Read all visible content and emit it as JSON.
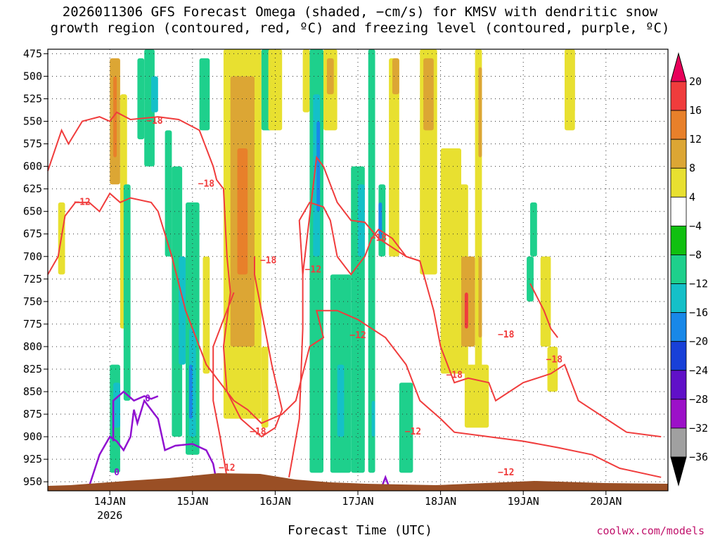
{
  "title": {
    "line1": "2026011306 GFS Forecast Omega (shaded, −cm/s) for KMSV with dendritic snow",
    "line2": "growth region (contoured, red, ºC) and freezing level (contoured, purple, ºC)"
  },
  "xlabel": "Forecast Time (UTC)",
  "credit": "coolwx.com/models",
  "chart_data": {
    "type": "heatmap",
    "y_axis": {
      "label": "",
      "ticks": [
        475,
        500,
        525,
        550,
        575,
        600,
        625,
        650,
        675,
        700,
        725,
        750,
        775,
        800,
        825,
        850,
        875,
        900,
        925,
        950
      ],
      "range": [
        470,
        960
      ]
    },
    "x_axis": {
      "ticks": [
        {
          "label": "14JAN",
          "sub": "2026"
        },
        {
          "label": "15JAN",
          "sub": ""
        },
        {
          "label": "16JAN",
          "sub": ""
        },
        {
          "label": "17JAN",
          "sub": ""
        },
        {
          "label": "18JAN",
          "sub": ""
        },
        {
          "label": "19JAN",
          "sub": ""
        },
        {
          "label": "20JAN",
          "sub": ""
        }
      ],
      "start_hour": -18,
      "end_hour": 162
    },
    "colorbar": {
      "labels": [
        "20",
        "16",
        "12",
        "8",
        "4",
        "−4",
        "−8",
        "−12",
        "−16",
        "−20",
        "−24",
        "−28",
        "−32",
        "−36"
      ],
      "levels": [
        20,
        16,
        12,
        8,
        4,
        -4,
        -8,
        -12,
        -16,
        -20,
        -24,
        -28,
        -32,
        -36
      ],
      "colors": [
        "#e8005a",
        "#f03c3c",
        "#e8802a",
        "#dca634",
        "#e8e030",
        "#ffffff",
        "#10c010",
        "#1ed08c",
        "#14c0c8",
        "#1888e8",
        "#1840d8",
        "#6010c8",
        "#9c10c8",
        "#a0a0a0",
        "#000000"
      ]
    },
    "omega_cells": [
      {
        "h0": 0,
        "h1": 3,
        "p0": 480,
        "p1": 620,
        "v": 8
      },
      {
        "h0": 1,
        "h1": 2,
        "p0": 500,
        "p1": 590,
        "v": 12
      },
      {
        "h0": -15,
        "h1": -13,
        "p0": 640,
        "p1": 720,
        "v": 4
      },
      {
        "h0": 3,
        "h1": 5,
        "p0": 520,
        "p1": 780,
        "v": 4
      },
      {
        "h0": 4,
        "h1": 6,
        "p0": 620,
        "p1": 860,
        "v": -8
      },
      {
        "h0": 0,
        "h1": 3,
        "p0": 820,
        "p1": 940,
        "v": -8
      },
      {
        "h0": 1,
        "h1": 3,
        "p0": 840,
        "p1": 890,
        "v": -12
      },
      {
        "h0": 8,
        "h1": 10,
        "p0": 480,
        "p1": 570,
        "v": -8
      },
      {
        "h0": 10,
        "h1": 13,
        "p0": 470,
        "p1": 600,
        "v": -8
      },
      {
        "h0": 12,
        "h1": 14,
        "p0": 500,
        "p1": 540,
        "v": -12
      },
      {
        "h0": 16,
        "h1": 18,
        "p0": 560,
        "p1": 700,
        "v": -8
      },
      {
        "h0": 18,
        "h1": 21,
        "p0": 600,
        "p1": 900,
        "v": -8
      },
      {
        "h0": 20,
        "h1": 22,
        "p0": 700,
        "p1": 820,
        "v": -12
      },
      {
        "h0": 22,
        "h1": 26,
        "p0": 640,
        "p1": 920,
        "v": -8
      },
      {
        "h0": 23,
        "h1": 25,
        "p0": 780,
        "p1": 900,
        "v": -12
      },
      {
        "h0": 23,
        "h1": 24,
        "p0": 820,
        "p1": 880,
        "v": -16
      },
      {
        "h0": 26,
        "h1": 29,
        "p0": 480,
        "p1": 560,
        "v": -8
      },
      {
        "h0": 27,
        "h1": 29,
        "p0": 700,
        "p1": 830,
        "v": 4
      },
      {
        "h0": 33,
        "h1": 44,
        "p0": 470,
        "p1": 880,
        "v": 4
      },
      {
        "h0": 35,
        "h1": 42,
        "p0": 500,
        "p1": 800,
        "v": 8
      },
      {
        "h0": 37,
        "h1": 40,
        "p0": 580,
        "p1": 720,
        "v": 12
      },
      {
        "h0": 44,
        "h1": 47,
        "p0": 470,
        "p1": 560,
        "v": -8
      },
      {
        "h0": 44,
        "h1": 46,
        "p0": 800,
        "p1": 890,
        "v": 4
      },
      {
        "h0": 46,
        "h1": 50,
        "p0": 470,
        "p1": 560,
        "v": 4
      },
      {
        "h0": 56,
        "h1": 58,
        "p0": 470,
        "p1": 540,
        "v": 4
      },
      {
        "h0": 58,
        "h1": 62,
        "p0": 470,
        "p1": 940,
        "v": -8
      },
      {
        "h0": 59,
        "h1": 61,
        "p0": 520,
        "p1": 700,
        "v": -12
      },
      {
        "h0": 60,
        "h1": 61,
        "p0": 550,
        "p1": 650,
        "v": -16
      },
      {
        "h0": 62,
        "h1": 66,
        "p0": 470,
        "p1": 560,
        "v": 4
      },
      {
        "h0": 63,
        "h1": 65,
        "p0": 480,
        "p1": 520,
        "v": 8
      },
      {
        "h0": 64,
        "h1": 70,
        "p0": 720,
        "p1": 940,
        "v": -8
      },
      {
        "h0": 66,
        "h1": 68,
        "p0": 820,
        "p1": 900,
        "v": -12
      },
      {
        "h0": 70,
        "h1": 74,
        "p0": 600,
        "p1": 940,
        "v": -8
      },
      {
        "h0": 72,
        "h1": 74,
        "p0": 620,
        "p1": 700,
        "v": -12
      },
      {
        "h0": 75,
        "h1": 77,
        "p0": 470,
        "p1": 940,
        "v": -8
      },
      {
        "h0": 76,
        "h1": 77,
        "p0": 860,
        "p1": 900,
        "v": -12
      },
      {
        "h0": 78,
        "h1": 80,
        "p0": 620,
        "p1": 700,
        "v": -8
      },
      {
        "h0": 78,
        "h1": 79,
        "p0": 640,
        "p1": 680,
        "v": -16
      },
      {
        "h0": 81,
        "h1": 84,
        "p0": 480,
        "p1": 700,
        "v": 4
      },
      {
        "h0": 82,
        "h1": 84,
        "p0": 480,
        "p1": 520,
        "v": 8
      },
      {
        "h0": 84,
        "h1": 88,
        "p0": 840,
        "p1": 940,
        "v": -8
      },
      {
        "h0": 90,
        "h1": 95,
        "p0": 470,
        "p1": 720,
        "v": 4
      },
      {
        "h0": 91,
        "h1": 94,
        "p0": 480,
        "p1": 560,
        "v": 8
      },
      {
        "h0": 96,
        "h1": 102,
        "p0": 580,
        "p1": 830,
        "v": 4
      },
      {
        "h0": 100,
        "h1": 104,
        "p0": 620,
        "p1": 830,
        "v": 4
      },
      {
        "h0": 102,
        "h1": 106,
        "p0": 700,
        "p1": 800,
        "v": 8
      },
      {
        "h0": 103,
        "h1": 104,
        "p0": 740,
        "p1": 780,
        "v": 16
      },
      {
        "h0": 106,
        "h1": 108,
        "p0": 470,
        "p1": 830,
        "v": 4
      },
      {
        "h0": 107,
        "h1": 108,
        "p0": 700,
        "p1": 790,
        "v": 8
      },
      {
        "h0": 107,
        "h1": 108,
        "p0": 490,
        "p1": 590,
        "v": 8
      },
      {
        "h0": 103,
        "h1": 110,
        "p0": 820,
        "p1": 890,
        "v": 4
      },
      {
        "h0": 122,
        "h1": 124,
        "p0": 640,
        "p1": 700,
        "v": -8
      },
      {
        "h0": 121,
        "h1": 123,
        "p0": 700,
        "p1": 750,
        "v": -8
      },
      {
        "h0": 125,
        "h1": 128,
        "p0": 700,
        "p1": 800,
        "v": 4
      },
      {
        "h0": 133,
        "h1": 135,
        "p0": 470,
        "p1": 540,
        "v": 8
      },
      {
        "h0": 132,
        "h1": 135,
        "p0": 470,
        "p1": 560,
        "v": 4
      },
      {
        "h0": 127,
        "h1": 130,
        "p0": 800,
        "p1": 850,
        "v": 4
      }
    ],
    "contours": [
      {
        "name": "dgz",
        "color": "#f03c3c",
        "labels": [
          {
            "text": "−18",
            "h": 13,
            "p": 550
          },
          {
            "text": "−18",
            "h": 28,
            "p": 620
          },
          {
            "text": "−12",
            "h": -8,
            "p": 640
          },
          {
            "text": "−18",
            "h": 46,
            "p": 705
          },
          {
            "text": "−12",
            "h": 59,
            "p": 715
          },
          {
            "text": "−12",
            "h": 72,
            "p": 788
          },
          {
            "text": "−18",
            "h": 78,
            "p": 680
          },
          {
            "text": "−18",
            "h": 43,
            "p": 895
          },
          {
            "text": "−12",
            "h": 34,
            "p": 935
          },
          {
            "text": "−12",
            "h": 88,
            "p": 895
          },
          {
            "text": "−18",
            "h": 100,
            "p": 832
          },
          {
            "text": "−18",
            "h": 115,
            "p": 787
          },
          {
            "text": "−18",
            "h": 129,
            "p": 815
          },
          {
            "text": "−12",
            "h": 115,
            "p": 940
          }
        ]
      },
      {
        "name": "freezing",
        "color": "#9010d0",
        "labels": [
          {
            "text": "0",
            "h": 11,
            "p": 858
          },
          {
            "text": "0",
            "h": 2,
            "p": 940
          }
        ]
      }
    ]
  }
}
